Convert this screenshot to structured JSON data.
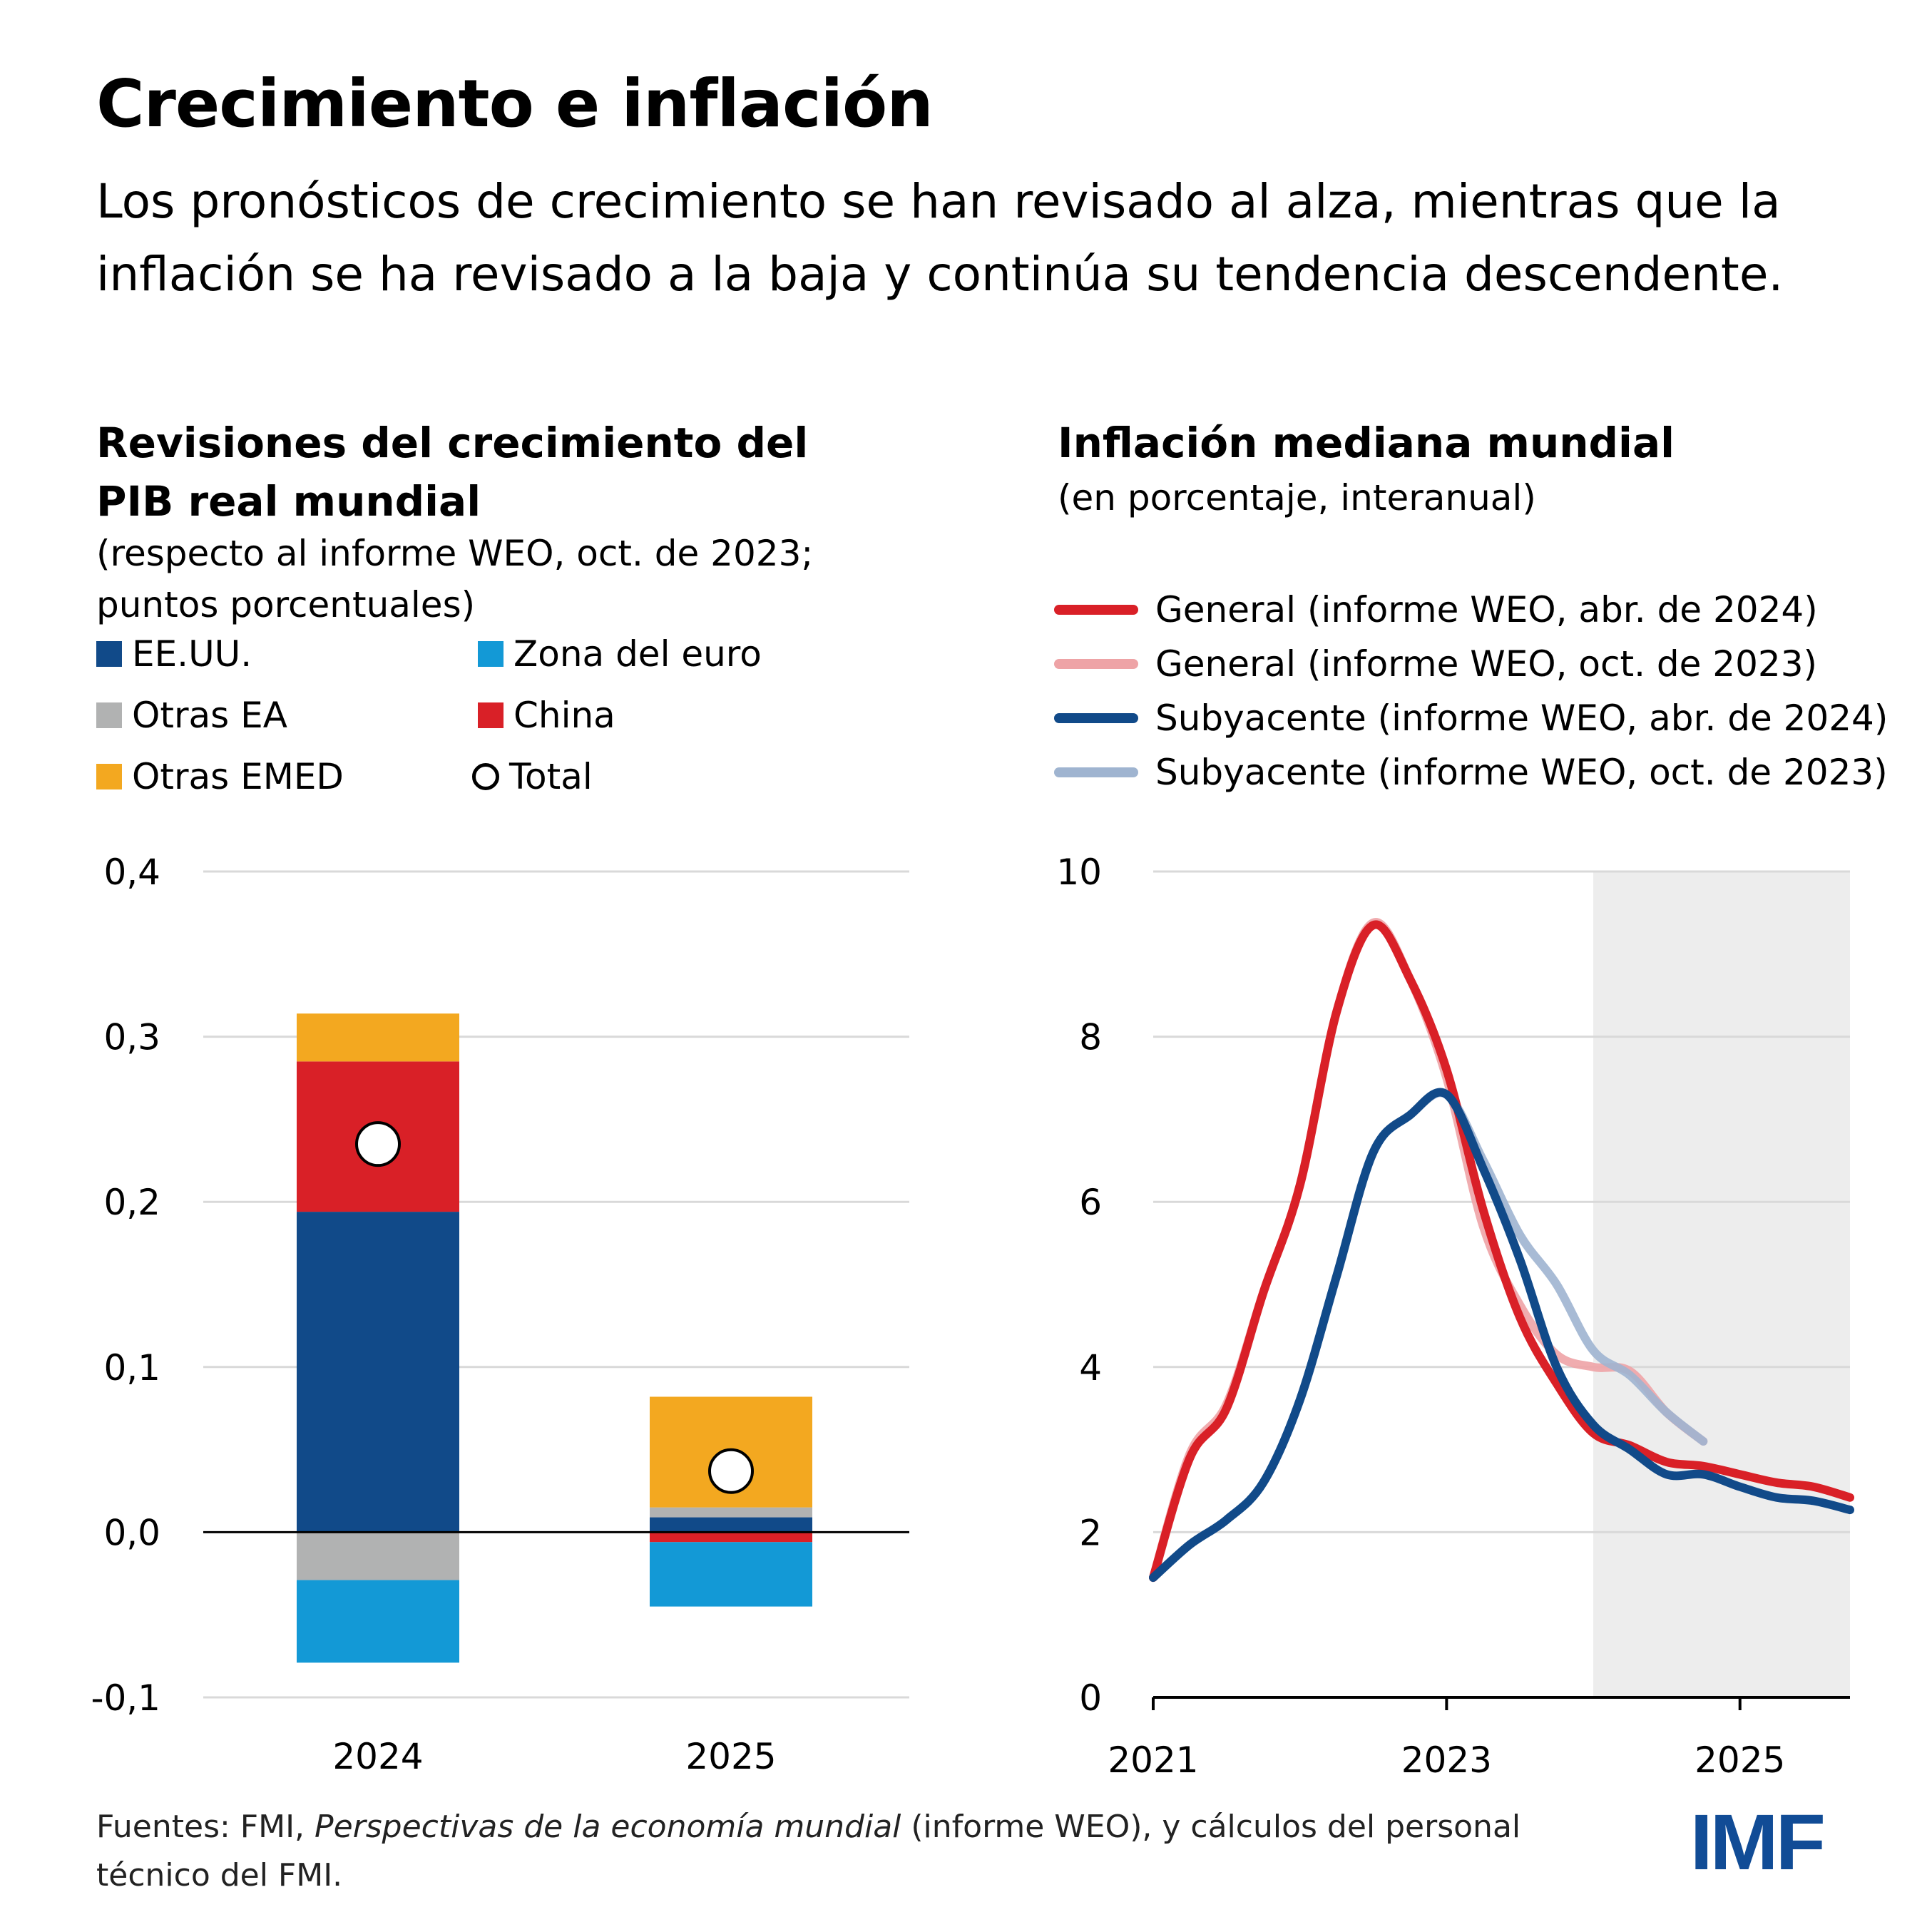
{
  "header": {
    "title": "Crecimiento e inflación",
    "subtitle": "Los pronósticos de crecimiento se han revisado al alza, mientras que la inflación se ha revisado a la baja y continúa su tendencia descendente."
  },
  "left_panel": {
    "title": "Revisiones del crecimiento del PIB real mundial",
    "subtitle": "(respecto al informe WEO, oct. de 2023; puntos porcentuales)",
    "legend": [
      {
        "label": "EE.UU.",
        "color": "#114a89",
        "marker": "square"
      },
      {
        "label": "Zona del euro",
        "color": "#1399d6",
        "marker": "square"
      },
      {
        "label": "Otras EA",
        "color": "#b1b2b2",
        "marker": "square"
      },
      {
        "label": "China",
        "color": "#d92027",
        "marker": "square"
      },
      {
        "label": "Otras EMED",
        "color": "#f3a820",
        "marker": "square"
      },
      {
        "label": "Total",
        "color": "#000000",
        "marker": "circle"
      }
    ]
  },
  "right_panel": {
    "title": "Inflación mediana mundial",
    "subtitle": "(en porcentaje, interanual)",
    "legend": [
      {
        "label": "General (informe WEO, abr. de 2024)",
        "color": "#d92027"
      },
      {
        "label": "General (informe WEO, oct. de 2023)",
        "color": "#eea3a6"
      },
      {
        "label": "Subyacente (informe WEO, abr. de 2024)",
        "color": "#114a89"
      },
      {
        "label": "Subyacente (informe WEO, oct. de 2023)",
        "color": "#9fb4d0"
      }
    ]
  },
  "chart_data": [
    {
      "type": "bar",
      "stacked": true,
      "title": "Revisiones del crecimiento del PIB real mundial",
      "ylabel": "puntos porcentuales",
      "categories": [
        "2024",
        "2025"
      ],
      "ylim": [
        -0.1,
        0.4
      ],
      "yticks": [
        0.4,
        0.3,
        0.2,
        0.1,
        0.0,
        -0.1
      ],
      "ytick_labels": [
        "0,4",
        "0,3",
        "0,2",
        "0,1",
        "0,0",
        "-0,1"
      ],
      "grid": true,
      "series": [
        {
          "name": "EE.UU.",
          "color": "#114a89",
          "values": [
            0.194,
            0.009
          ]
        },
        {
          "name": "Zona del euro",
          "color": "#1399d6",
          "values": [
            -0.05,
            -0.039
          ]
        },
        {
          "name": "Otras EA",
          "color": "#b1b2b2",
          "values": [
            -0.029,
            0.006
          ]
        },
        {
          "name": "China",
          "color": "#d92027",
          "values": [
            0.091,
            -0.006
          ]
        },
        {
          "name": "Otras EMED",
          "color": "#f3a820",
          "values": [
            0.029,
            0.067
          ]
        }
      ],
      "total": {
        "name": "Total",
        "values": [
          0.235,
          0.037
        ]
      }
    },
    {
      "type": "line",
      "title": "Inflación mediana mundial",
      "ylabel": "en porcentaje, interanual",
      "xlim": [
        2021.0,
        2025.75
      ],
      "ylim": [
        0,
        10
      ],
      "yticks": [
        0,
        2,
        4,
        6,
        8,
        10
      ],
      "xticks": [
        2021,
        2023,
        2025
      ],
      "xtick_labels": [
        "2021",
        "2023",
        "2025"
      ],
      "grid": true,
      "forecast_shading_from": 2024.0,
      "x": [
        2021.0,
        2021.25,
        2021.5,
        2021.75,
        2022.0,
        2022.25,
        2022.5,
        2022.75,
        2023.0,
        2023.25,
        2023.5,
        2023.75,
        2024.0,
        2024.25,
        2024.5,
        2024.75,
        2025.0,
        2025.25,
        2025.5,
        2025.75
      ],
      "series": [
        {
          "name": "General (informe WEO, oct. de 2023)",
          "color": "#eea3a6",
          "values": [
            1.45,
            2.95,
            3.55,
            4.9,
            6.2,
            8.3,
            9.38,
            8.7,
            7.5,
            5.7,
            4.75,
            4.15,
            4.0,
            3.95,
            3.45,
            3.1,
            null,
            null,
            null,
            null
          ]
        },
        {
          "name": "Subyacente (informe WEO, oct. de 2023)",
          "color": "#9fb4d0",
          "values": [
            1.45,
            1.85,
            2.15,
            2.6,
            3.6,
            5.1,
            6.6,
            7.05,
            7.3,
            6.5,
            5.6,
            5.0,
            4.2,
            3.9,
            3.45,
            3.1,
            null,
            null,
            null,
            null
          ]
        },
        {
          "name": "General (informe WEO, abr. de 2024)",
          "color": "#d92027",
          "values": [
            1.45,
            2.9,
            3.5,
            4.9,
            6.2,
            8.3,
            9.35,
            8.7,
            7.6,
            5.9,
            4.6,
            3.8,
            3.2,
            3.05,
            2.85,
            2.8,
            2.7,
            2.6,
            2.55,
            2.42
          ]
        },
        {
          "name": "Subyacente (informe WEO, abr. de 2024)",
          "color": "#114a89",
          "values": [
            1.45,
            1.85,
            2.15,
            2.6,
            3.6,
            5.1,
            6.6,
            7.05,
            7.3,
            6.4,
            5.3,
            4.0,
            3.3,
            3.0,
            2.7,
            2.7,
            2.55,
            2.42,
            2.38,
            2.27
          ]
        }
      ]
    }
  ],
  "footer": {
    "source_prefix": "Fuentes: FMI, ",
    "source_italic": "Perspectivas de la economía mundial",
    "source_suffix": " (informe WEO), y cálculos del personal técnico del FMI.",
    "logo": "IMF"
  }
}
